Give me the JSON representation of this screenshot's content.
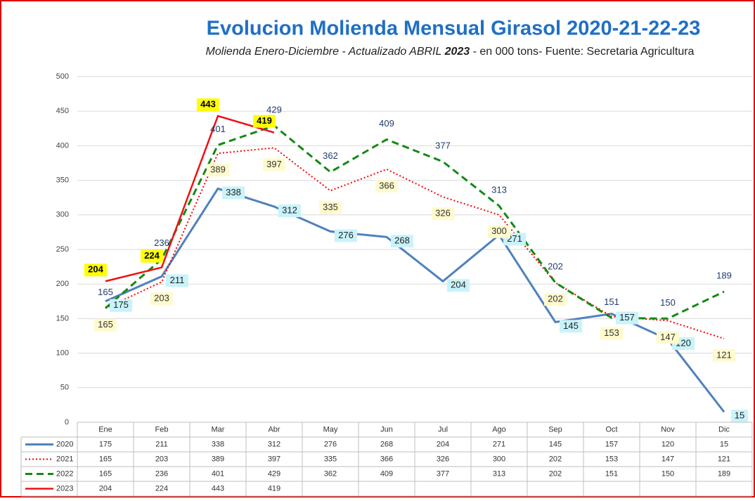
{
  "chart_data": {
    "type": "line",
    "title": "Evolucion Molienda Mensual Girasol 2020-21-22-23",
    "subtitle_parts": [
      "Molienda Enero-Diciembre - Actualizado ABRIL ",
      "2023",
      " - en 000 tons- Fuente: Secretaria Agricultura"
    ],
    "categories": [
      "Ene",
      "Feb",
      "Mar",
      "Abr",
      "May",
      "Jun",
      "Jul",
      "Ago",
      "Sep",
      "Oct",
      "Nov",
      "Dic"
    ],
    "series": [
      {
        "name": "2020",
        "color": "#4f81bd",
        "style": "solid",
        "values": [
          175,
          211,
          338,
          312,
          276,
          268,
          204,
          271,
          145,
          157,
          120,
          15
        ]
      },
      {
        "name": "2021",
        "color": "#ff0000",
        "style": "dotted",
        "values": [
          165,
          203,
          389,
          397,
          335,
          366,
          326,
          300,
          202,
          153,
          147,
          121
        ]
      },
      {
        "name": "2022",
        "color": "#138a13",
        "style": "dashed",
        "values": [
          165,
          236,
          401,
          429,
          362,
          409,
          377,
          313,
          202,
          151,
          150,
          189
        ]
      },
      {
        "name": "2023",
        "color": "#ee1111",
        "style": "solid",
        "values": [
          204,
          224,
          443,
          419,
          null,
          null,
          null,
          null,
          null,
          null,
          null,
          null
        ]
      }
    ],
    "ylim": [
      0,
      500
    ],
    "yticks": [
      0,
      50,
      100,
      150,
      200,
      250,
      300,
      350,
      400,
      450,
      500
    ],
    "grid": true,
    "data_table": true
  }
}
